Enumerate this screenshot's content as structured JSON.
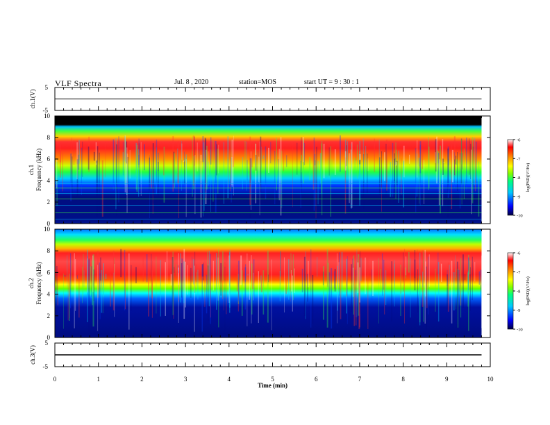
{
  "header": {
    "title": "VLF Spectra",
    "date": "Jul. 8 , 2020",
    "station": "station=MOS",
    "start": "start UT = 9 : 30 : 1"
  },
  "colors": {
    "spectrum_scale": [
      "#000080",
      "#0000ff",
      "#00aaff",
      "#00ffff",
      "#00ff66",
      "#66ff00",
      "#ffff00",
      "#ffaa00",
      "#ff2200",
      "#ff4444",
      "#ffffff"
    ],
    "saturated_band": "#000000"
  },
  "chart_data": [
    {
      "type": "line",
      "panel": "ch1",
      "ylabel": "ch.1(V)",
      "yticks": [
        "5",
        "-5"
      ],
      "ylim": [
        -5,
        5
      ],
      "xlim": [
        0,
        10
      ],
      "series": [
        {
          "x": [
            0,
            9.8
          ],
          "y": [
            0,
            0
          ]
        }
      ]
    },
    {
      "type": "heatmap",
      "panel": "spec1",
      "ylabel_channel": "ch.1",
      "ylabel": "Frequency (kHz)",
      "yticks": [
        "0",
        "2",
        "4",
        "6",
        "8",
        "10"
      ],
      "ylim": [
        0,
        10
      ],
      "xlim": [
        0,
        10
      ],
      "data_extent_min": 9.8,
      "colorbar": {
        "label": "log(PSD)(V²/Hz)",
        "ticks": [
          "-6",
          "-7",
          "-8",
          "-9",
          "-10"
        ],
        "range": [
          -10,
          -6
        ]
      }
    },
    {
      "type": "heatmap",
      "panel": "spec2",
      "ylabel_channel": "ch.2",
      "ylabel": "Frequency (kHz)",
      "yticks": [
        "0",
        "2",
        "4",
        "6",
        "8",
        "10"
      ],
      "ylim": [
        0,
        10
      ],
      "xlim": [
        0,
        10
      ],
      "data_extent_min": 9.8,
      "colorbar": {
        "label": "log(PSD)(V²/Hz)",
        "ticks": [
          "-6",
          "-7",
          "-8",
          "-9",
          "-10"
        ],
        "range": [
          -10,
          -6
        ]
      }
    },
    {
      "type": "line",
      "panel": "ch3",
      "ylabel": "ch.3(V)",
      "yticks": [
        "5",
        "-5"
      ],
      "ylim": [
        -5,
        5
      ],
      "xlim": [
        0,
        10
      ],
      "series": [
        {
          "x": [
            0,
            9.8
          ],
          "y": [
            0,
            0
          ]
        }
      ]
    }
  ],
  "xaxis": {
    "label": "Time (min)",
    "ticks": [
      "0",
      "1",
      "2",
      "3",
      "4",
      "5",
      "6",
      "7",
      "8",
      "9",
      "10"
    ]
  }
}
